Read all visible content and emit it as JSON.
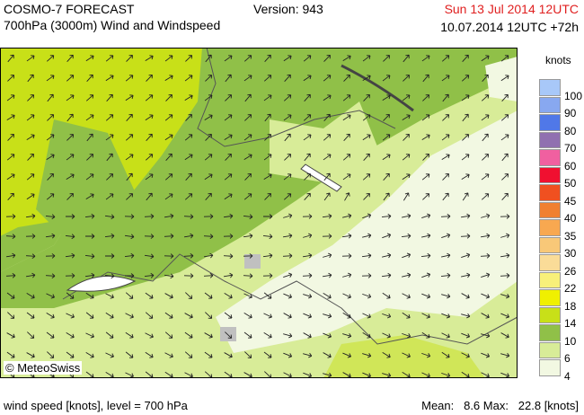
{
  "header": {
    "product": "COSMO-7 FORECAST",
    "subtitle": "700hPa (3000m) Wind and Windspeed",
    "version": "Version: 943",
    "valid_time": "Sun 13 Jul 2014 12UTC",
    "run_time": "10.07.2014 12UTC +72h"
  },
  "legend": {
    "unit": "knots",
    "items": [
      {
        "label": 100,
        "color": "#a8c8f8"
      },
      {
        "label": 90,
        "color": "#88a8f0"
      },
      {
        "label": 80,
        "color": "#5078e8"
      },
      {
        "label": 70,
        "color": "#9070b0"
      },
      {
        "label": 60,
        "color": "#f060a0"
      },
      {
        "label": 50,
        "color": "#f01030"
      },
      {
        "label": 45,
        "color": "#f05020"
      },
      {
        "label": 40,
        "color": "#f08030"
      },
      {
        "label": 35,
        "color": "#f8a850"
      },
      {
        "label": 30,
        "color": "#f8c878"
      },
      {
        "label": 26,
        "color": "#fadc98"
      },
      {
        "label": 22,
        "color": "#f8f07a"
      },
      {
        "label": 18,
        "color": "#f0f000"
      },
      {
        "label": 14,
        "color": "#c8e018"
      },
      {
        "label": 10,
        "color": "#90c048"
      },
      {
        "label": 6,
        "color": "#d8ec98"
      },
      {
        "label": 4,
        "color": "#f2f8e2"
      }
    ]
  },
  "copyright": "© MeteoSwiss",
  "footer": {
    "description": "wind speed [knots], level = 700 hPa",
    "stats": "Mean:   8.6 Max:   22.8 [knots]"
  }
}
